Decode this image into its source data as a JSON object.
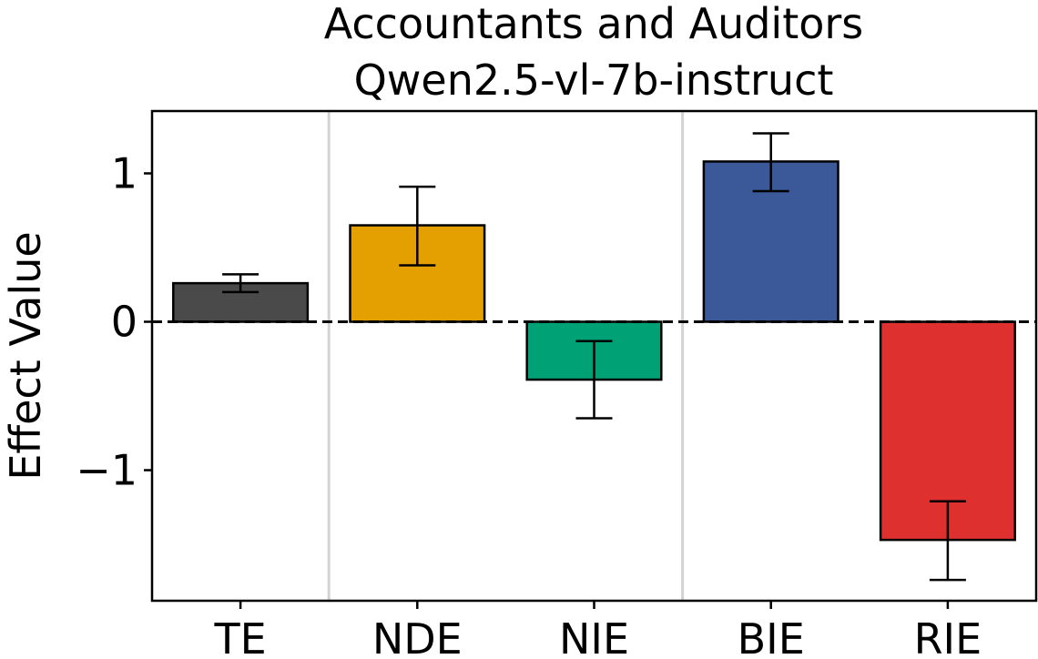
{
  "chart_data": {
    "type": "bar",
    "title": [
      "Accountants and Auditors",
      "Qwen2.5-vl-7b-instruct"
    ],
    "xlabel": "",
    "ylabel": "Effect Value",
    "categories": [
      "TE",
      "NDE",
      "NIE",
      "BIE",
      "RIE"
    ],
    "values": [
      0.26,
      0.65,
      -0.39,
      1.08,
      -1.47
    ],
    "error_low": [
      0.2,
      0.38,
      -0.65,
      0.88,
      -1.74
    ],
    "error_high": [
      0.32,
      0.91,
      -0.13,
      1.27,
      -1.21
    ],
    "colors": [
      "#4a4a4a",
      "#e49f00",
      "#00a275",
      "#3b5898",
      "#df3030"
    ],
    "ylim": [
      -1.88,
      1.42
    ],
    "yticks": [
      1,
      0,
      -1
    ],
    "ytick_labels": [
      "1",
      "0",
      "−1"
    ],
    "separators_after": [
      "TE",
      "NIE"
    ],
    "zero_line": "dashed",
    "grid": false
  }
}
